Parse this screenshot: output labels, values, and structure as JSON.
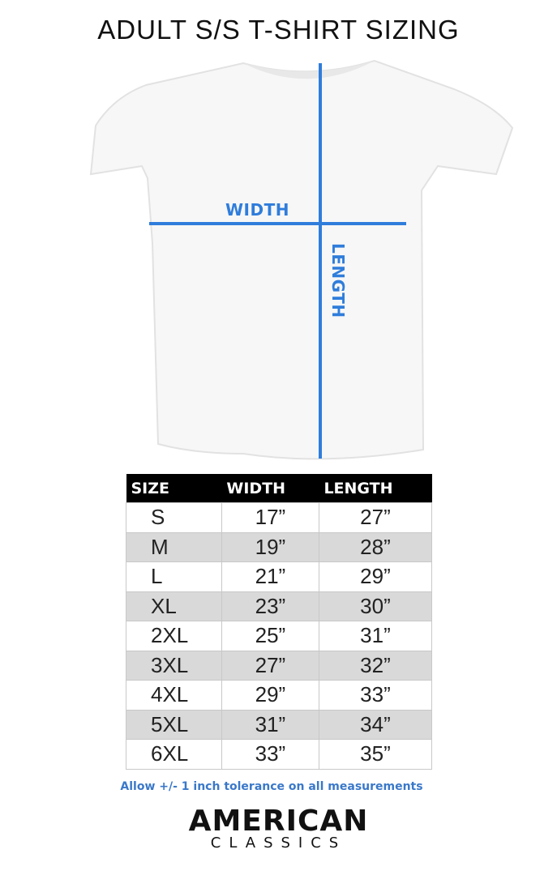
{
  "title": "ADULT S/S T-SHIRT SIZING",
  "diagram": {
    "width_label": "WIDTH",
    "length_label": "LENGTH",
    "line_color": "#2f7ddb"
  },
  "table": {
    "headers": [
      "SIZE",
      "WIDTH",
      "LENGTH"
    ],
    "rows": [
      [
        "S",
        "17”",
        "27”"
      ],
      [
        "M",
        "19”",
        "28”"
      ],
      [
        "L",
        "21”",
        "29”"
      ],
      [
        "XL",
        "23”",
        "30”"
      ],
      [
        "2XL",
        "25”",
        "31”"
      ],
      [
        "3XL",
        "27”",
        "32”"
      ],
      [
        "4XL",
        "29”",
        "33”"
      ],
      [
        "5XL",
        "31”",
        "34”"
      ],
      [
        "6XL",
        "33”",
        "35”"
      ]
    ]
  },
  "note": "Allow +/- 1 inch tolerance on all measurements",
  "logo": {
    "line1": "AMERICAN",
    "line2": "CLASSICS"
  }
}
